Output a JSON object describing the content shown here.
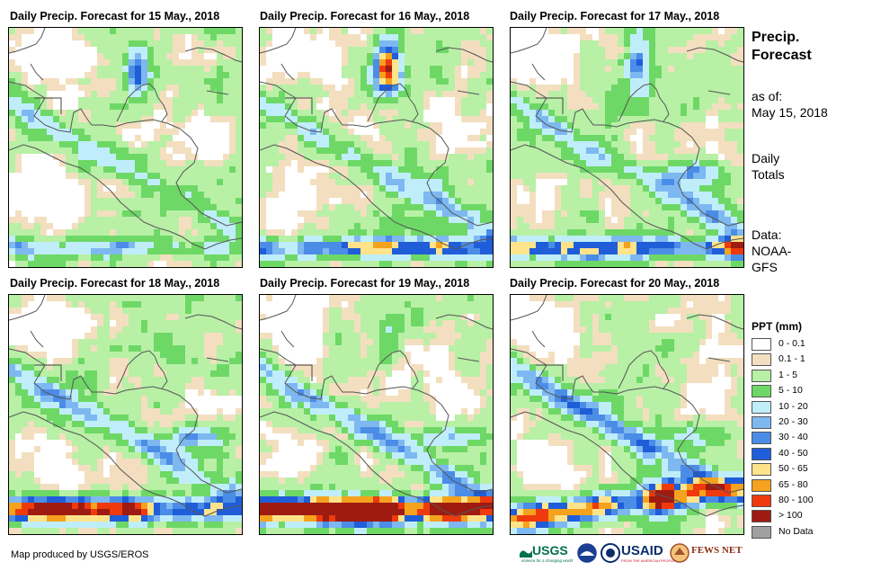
{
  "panels": [
    {
      "title": "Daily Precip. Forecast for 15 May., 2018",
      "day": 0
    },
    {
      "title": "Daily Precip. Forecast for 16 May., 2018",
      "day": 1
    },
    {
      "title": "Daily Precip. Forecast for 17 May., 2018",
      "day": 2
    },
    {
      "title": "Daily Precip. Forecast for 18 May., 2018",
      "day": 3
    },
    {
      "title": "Daily Precip. Forecast for 19 May., 2018",
      "day": 4
    },
    {
      "title": "Daily Precip. Forecast for 20 May., 2018",
      "day": 5
    }
  ],
  "side": {
    "heading_line1": "Precip.",
    "heading_line2": "Forecast",
    "asof_line1": "as of:",
    "asof_line2": "May 15, 2018",
    "daily_line1": "Daily",
    "daily_line2": "Totals",
    "data_line1": "Data:",
    "data_line2": "NOAA-",
    "data_line3": "GFS"
  },
  "legend": {
    "title": "PPT (mm)",
    "items": [
      {
        "label": "0 - 0.1",
        "color": "#ffffff"
      },
      {
        "label": "0.1 - 1",
        "color": "#f3dfbf"
      },
      {
        "label": "1 - 5",
        "color": "#b8f0a6"
      },
      {
        "label": "5 - 10",
        "color": "#6ed866"
      },
      {
        "label": "10 - 20",
        "color": "#bfeefa"
      },
      {
        "label": "20 - 30",
        "color": "#7eb8f0"
      },
      {
        "label": "30 - 40",
        "color": "#4b8ce6"
      },
      {
        "label": "40 - 50",
        "color": "#1f5ed8"
      },
      {
        "label": "50 - 65",
        "color": "#ffe38a"
      },
      {
        "label": "65 - 80",
        "color": "#f5a21e"
      },
      {
        "label": "80 - 100",
        "color": "#ee3a0c"
      },
      {
        "label": "> 100",
        "color": "#9e1b12"
      },
      {
        "label": "No Data",
        "color": "#a0a0a0"
      }
    ]
  },
  "credit": "Map produced by USGS/EROS",
  "logos": {
    "usgs": "USGS",
    "usgs_tag": "science for a changing world",
    "usaid": "USAID",
    "usaid_tag": "FROM THE AMERICAN PEOPLE",
    "fewsnet": "FEWS NET"
  }
}
